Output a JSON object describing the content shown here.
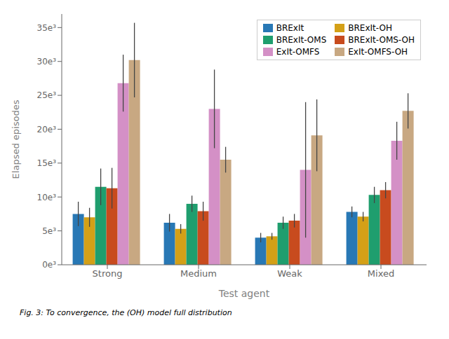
{
  "chart_data": {
    "type": "bar",
    "xlabel": "Test agent",
    "ylabel": "Elapsed episodes",
    "caption": "Fig. 3: To convergence, the (OH) model full distribution",
    "categories": [
      "Strong",
      "Medium",
      "Weak",
      "Mixed"
    ],
    "series": [
      {
        "name": "BRExIt",
        "color": "#2878b5",
        "values": [
          7500,
          6200,
          4000,
          7800
        ],
        "errors": [
          1800,
          1300,
          700,
          800
        ]
      },
      {
        "name": "BRExIt-OH",
        "color": "#d4a017",
        "values": [
          7000,
          5300,
          4200,
          7100
        ],
        "errors": [
          1400,
          700,
          500,
          700
        ]
      },
      {
        "name": "BRExIt-OMS",
        "color": "#1f9e6e",
        "values": [
          11500,
          9000,
          6200,
          10300
        ],
        "errors": [
          2700,
          1200,
          900,
          1200
        ]
      },
      {
        "name": "BRExIt-OMS-OH",
        "color": "#c84b1e",
        "values": [
          11300,
          7900,
          6500,
          11000
        ],
        "errors": [
          3000,
          1400,
          1000,
          1200
        ]
      },
      {
        "name": "ExIt-OMFS",
        "color": "#d490c6",
        "values": [
          26800,
          23000,
          14000,
          18300
        ],
        "errors": [
          4200,
          5800,
          10000,
          2800
        ]
      },
      {
        "name": "ExIt-OMFS-OH",
        "color": "#c8a882",
        "values": [
          30200,
          15500,
          19100,
          22700
        ],
        "errors": [
          5500,
          1900,
          5300,
          2600
        ]
      }
    ],
    "ylim": [
      0,
      37000
    ],
    "yticks": [
      {
        "value": 0,
        "label": "0e³"
      },
      {
        "value": 5000,
        "label": "5e³"
      },
      {
        "value": 10000,
        "label": "10e³"
      },
      {
        "value": 15000,
        "label": "15e³"
      },
      {
        "value": 20000,
        "label": "20e³"
      },
      {
        "value": 25000,
        "label": "25e³"
      },
      {
        "value": 30000,
        "label": "30e³"
      },
      {
        "value": 35000,
        "label": "35e³"
      }
    ],
    "grid": false,
    "legend": "upper right"
  }
}
